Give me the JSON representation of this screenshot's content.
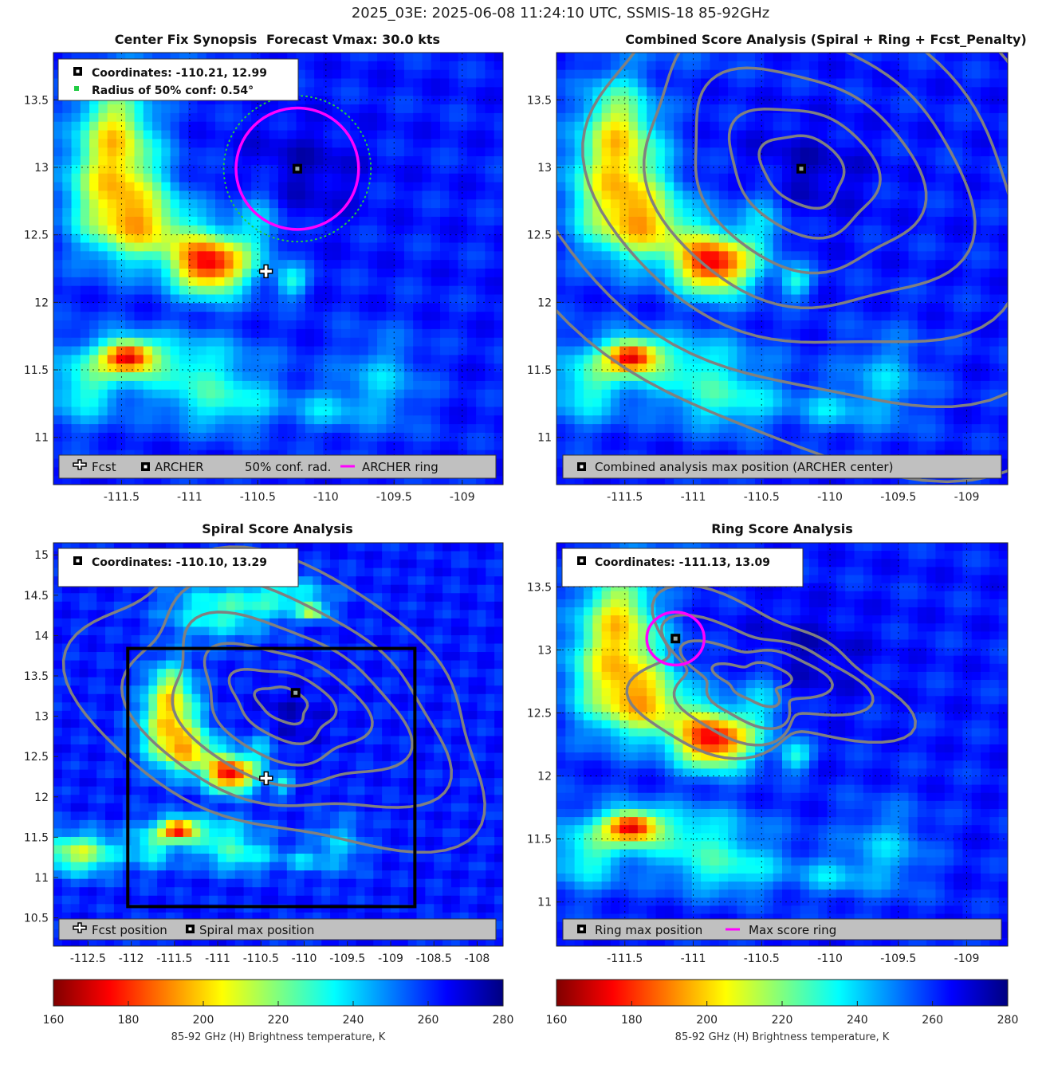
{
  "suptitle": "2025_03E: 2025-06-08 11:24:10 UTC, SSMIS-18 85-92GHz",
  "panels": {
    "synopsis": {
      "title_left": "Center Fix Synopsis",
      "title_right": "Forecast Vmax: 30.0 kts",
      "info_line1": "Coordinates: -110.21, 12.99",
      "info_line2": "Radius of 50% conf: 0.54°",
      "legend": [
        "Fcst",
        "ARCHER",
        "50% conf. rad.",
        "ARCHER ring"
      ]
    },
    "combined": {
      "title": "Combined Score Analysis (Spiral + Ring + Fcst_Penalty)",
      "legend": [
        "Combined analysis max position (ARCHER center)"
      ]
    },
    "spiral": {
      "title": "Spiral Score Analysis",
      "info_line1": "Coordinates: -110.10, 13.29",
      "legend": [
        "Fcst position",
        "Spiral max position"
      ]
    },
    "ring": {
      "title": "Ring Score Analysis",
      "info_line1": "Coordinates: -111.13, 13.09",
      "legend": [
        "Ring max position",
        "Max score ring"
      ]
    }
  },
  "chart_data": [
    {
      "type": "heatmap",
      "name": "Center Fix Synopsis",
      "xlim": [
        -112,
        -108.7
      ],
      "ylim": [
        10.65,
        13.85
      ],
      "xticks": [
        -111.5,
        -111,
        -110.5,
        -110,
        -109.5,
        -109
      ],
      "yticks": [
        11,
        11.5,
        12,
        12.5,
        13,
        13.5
      ],
      "grid": true,
      "archer_center": [
        -110.21,
        12.99
      ],
      "fcst_position": [
        -110.44,
        12.23
      ],
      "archer_ring_radius_deg": 0.45,
      "conf50_radius_deg": 0.54
    },
    {
      "type": "heatmap",
      "name": "Combined Score Analysis",
      "xlim": [
        -112,
        -108.7
      ],
      "ylim": [
        10.65,
        13.85
      ],
      "xticks": [
        -111.5,
        -111,
        -110.5,
        -110,
        -109.5,
        -109
      ],
      "yticks": [
        11,
        11.5,
        12,
        12.5,
        13,
        13.5
      ],
      "grid": true,
      "max_position": [
        -110.21,
        12.99
      ]
    },
    {
      "type": "heatmap",
      "name": "Spiral Score Analysis",
      "xlim": [
        -112.9,
        -107.7
      ],
      "ylim": [
        10.15,
        15.15
      ],
      "xticks": [
        -112.5,
        -112,
        -111.5,
        -111,
        -110.5,
        -110,
        -109.5,
        -109,
        -108.5,
        -108
      ],
      "yticks": [
        10.5,
        11,
        11.5,
        12,
        12.5,
        13,
        13.5,
        14,
        14.5,
        15
      ],
      "grid": false,
      "spiral_max": [
        -110.1,
        13.29
      ],
      "fcst_position": [
        -110.44,
        12.23
      ],
      "search_box": {
        "x": [
          -112.04,
          -108.72
        ],
        "y": [
          10.64,
          13.84
        ]
      }
    },
    {
      "type": "heatmap",
      "name": "Ring Score Analysis",
      "xlim": [
        -112,
        -108.7
      ],
      "ylim": [
        10.65,
        13.85
      ],
      "xticks": [
        -111.5,
        -111,
        -110.5,
        -110,
        -109.5,
        -109
      ],
      "yticks": [
        11,
        11.5,
        12,
        12.5,
        13,
        13.5
      ],
      "grid": true,
      "ring_max": [
        -111.13,
        13.09
      ],
      "ring_radius_deg": 0.21
    }
  ],
  "colorbar": {
    "min": 160,
    "max": 280,
    "ticks": [
      160,
      180,
      200,
      220,
      240,
      260,
      280
    ],
    "label": "85-92 GHz (H) Brightness temperature, K",
    "colormap": "jet-reversed"
  },
  "colors": {
    "archer_ring": "#ff00ff",
    "conf_ring": "#22cc44",
    "contour": "#808080",
    "legend_bg": "#c0c0c0"
  }
}
